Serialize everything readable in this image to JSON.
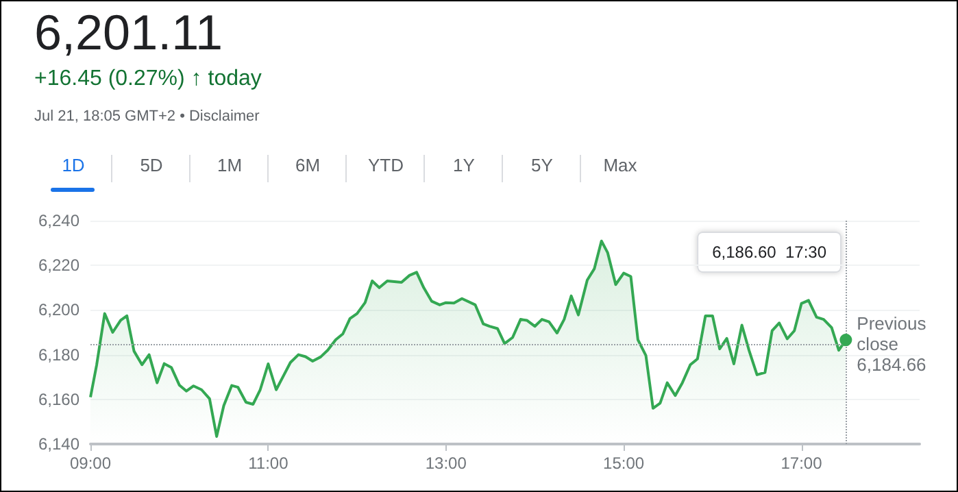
{
  "chart_data": {
    "type": "area",
    "title": "6,201.11",
    "subtitle": "+16.45 (0.27%) ↑ today",
    "annotations": [
      "Jul 21, 18:05 GMT+2 • Disclaimer",
      "1D",
      "5D",
      "1M",
      "6M",
      "YTD",
      "1Y",
      "5Y",
      "Max",
      "6,186.60  17:30"
    ],
    "x": [
      9.0,
      9.07,
      9.16,
      9.25,
      9.34,
      9.41,
      9.49,
      9.58,
      9.66,
      9.75,
      9.83,
      9.91,
      10.0,
      10.08,
      10.16,
      10.25,
      10.34,
      10.42,
      10.5,
      10.59,
      10.66,
      10.75,
      10.83,
      10.91,
      11.0,
      11.09,
      11.17,
      11.25,
      11.34,
      11.42,
      11.5,
      11.59,
      11.67,
      11.76,
      11.84,
      11.92,
      12.0,
      12.09,
      12.17,
      12.25,
      12.34,
      12.5,
      12.59,
      12.67,
      12.75,
      12.84,
      12.93,
      13.0,
      13.09,
      13.18,
      13.33,
      13.42,
      13.49,
      13.58,
      13.66,
      13.75,
      13.84,
      13.91,
      14.0,
      14.08,
      14.16,
      14.25,
      14.33,
      14.41,
      14.49,
      14.59,
      14.67,
      14.75,
      14.82,
      14.91,
      15.0,
      15.08,
      15.16,
      15.25,
      15.33,
      15.41,
      15.49,
      15.58,
      15.66,
      15.75,
      15.83,
      15.92,
      16.0,
      16.08,
      16.16,
      16.24,
      16.33,
      16.41,
      16.5,
      16.59,
      16.67,
      16.75,
      16.84,
      16.92,
      17.0,
      17.08,
      17.17,
      17.25,
      17.34,
      17.42,
      17.5
    ],
    "series": [
      {
        "color": "#34a853",
        "values": [
          6161,
          6175.5,
          6198.4,
          6190,
          6195.4,
          6197.4,
          6181.6,
          6175.5,
          6180,
          6167.4,
          6176,
          6174.3,
          6166.4,
          6163.7,
          6166,
          6164.3,
          6160.3,
          6143.4,
          6157.2,
          6166.2,
          6165.4,
          6158.7,
          6157.8,
          6164.3,
          6175.9,
          6164.3,
          6170.4,
          6176.5,
          6180,
          6179.1,
          6177.1,
          6179,
          6182,
          6186.7,
          6189.3,
          6196.2,
          6198.4,
          6203.3,
          6213,
          6210,
          6213,
          6212.4,
          6215.5,
          6216.9,
          6210,
          6203.9,
          6202.3,
          6203.3,
          6203.1,
          6205.1,
          6202.3,
          6193.8,
          6192.7,
          6191.7,
          6185,
          6187.7,
          6195.8,
          6195.4,
          6192.7,
          6195.8,
          6194.7,
          6189.7,
          6195.8,
          6206.3,
          6197.8,
          6213.4,
          6218.5,
          6230.9,
          6225.6,
          6211.4,
          6216.5,
          6215,
          6186.7,
          6179.6,
          6156,
          6158.3,
          6167.4,
          6161.7,
          6167.4,
          6175.5,
          6178.1,
          6197.4,
          6197.4,
          6182.6,
          6187.3,
          6175.9,
          6193.2,
          6182,
          6171,
          6172,
          6190.7,
          6194.2,
          6187.1,
          6190.7,
          6202.9,
          6204.3,
          6196.8,
          6195.8,
          6192.1,
          6182,
          6186.6
        ]
      }
    ],
    "xlim": [
      9,
      18.33
    ],
    "xticks": [
      {
        "value": 9,
        "label": "09:00"
      },
      {
        "value": 11,
        "label": "11:00"
      },
      {
        "value": 13,
        "label": "13:00"
      },
      {
        "value": 15,
        "label": "15:00"
      },
      {
        "value": 17,
        "label": "17:00"
      }
    ],
    "ylim": [
      6140,
      6240
    ],
    "yticks": [
      {
        "value": 6140,
        "label": "6,140"
      },
      {
        "value": 6160,
        "label": "6,160"
      },
      {
        "value": 6180,
        "label": "6,180"
      },
      {
        "value": 6200,
        "label": "6,200"
      },
      {
        "value": 6220,
        "label": "6,220"
      },
      {
        "value": 6240,
        "label": "6,240"
      }
    ],
    "ref_lines": [
      {
        "axis": "y",
        "value": 6184.66,
        "label": "Previous close 6,184.66",
        "line_style": "dotted",
        "color": "#9aa0a6"
      },
      {
        "axis": "x",
        "value": 17.5,
        "line_style": "dotted",
        "color": "#9aa0a6"
      }
    ],
    "grid": "y",
    "marker": "none",
    "line_style": "solid"
  }
}
